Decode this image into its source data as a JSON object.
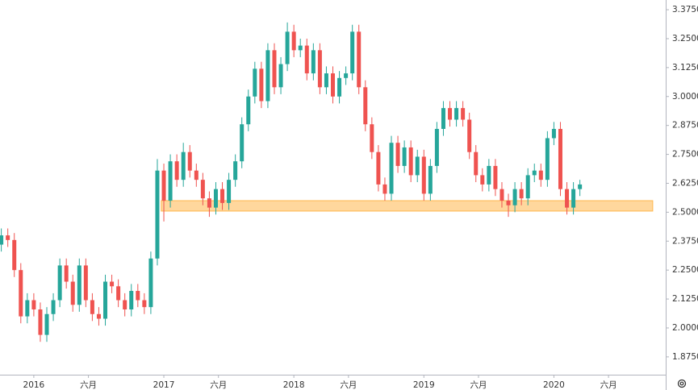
{
  "chart_data": {
    "type": "candlestick",
    "x": [
      2015.75,
      2015.8,
      2015.85,
      2015.9,
      2015.95,
      2016,
      2016.05,
      2016.1,
      2016.15,
      2016.2,
      2016.25,
      2016.3,
      2016.35,
      2016.4,
      2016.45,
      2016.5,
      2016.55,
      2016.6,
      2016.65,
      2016.7,
      2016.75,
      2016.8,
      2016.85,
      2016.9,
      2016.95,
      2017,
      2017.05,
      2017.1,
      2017.15,
      2017.2,
      2017.25,
      2017.3,
      2017.35,
      2017.4,
      2017.45,
      2017.5,
      2017.55,
      2017.6,
      2017.65,
      2017.7,
      2017.75,
      2017.8,
      2017.85,
      2017.9,
      2017.95,
      2018,
      2018.05,
      2018.1,
      2018.15,
      2018.2,
      2018.25,
      2018.3,
      2018.35,
      2018.4,
      2018.45,
      2018.5,
      2018.55,
      2018.6,
      2018.65,
      2018.7,
      2018.75,
      2018.8,
      2018.85,
      2018.9,
      2018.95,
      2019,
      2019.05,
      2019.1,
      2019.15,
      2019.2,
      2019.25,
      2019.3,
      2019.35,
      2019.4,
      2019.45,
      2019.5,
      2019.55,
      2019.6,
      2019.65,
      2019.7,
      2019.75,
      2019.8,
      2019.85,
      2019.9,
      2019.95,
      2020,
      2020.05,
      2020.1,
      2020.15,
      2020.2
    ],
    "open": [
      2.36,
      2.4,
      2.38,
      2.25,
      2.05,
      2.12,
      2.08,
      1.97,
      2.06,
      2.12,
      2.27,
      2.2,
      2.1,
      2.27,
      2.12,
      2.06,
      2.04,
      2.2,
      2.18,
      2.12,
      2.08,
      2.16,
      2.12,
      2.09,
      2.3,
      2.68,
      2.55,
      2.72,
      2.64,
      2.76,
      2.68,
      2.64,
      2.56,
      2.52,
      2.6,
      2.54,
      2.64,
      2.72,
      2.88,
      3.0,
      3.12,
      2.98,
      3.2,
      3.04,
      3.14,
      3.28,
      3.2,
      3.22,
      3.1,
      3.2,
      3.04,
      3.1,
      3.0,
      3.08,
      3.1,
      3.28,
      3.04,
      2.88,
      2.76,
      2.62,
      2.58,
      2.8,
      2.7,
      2.78,
      2.66,
      2.74,
      2.58,
      2.7,
      2.86,
      2.95,
      2.9,
      2.95,
      2.9,
      2.76,
      2.66,
      2.62,
      2.7,
      2.6,
      2.55,
      2.53,
      2.6,
      2.56,
      2.66,
      2.68,
      2.64,
      2.82,
      2.86,
      2.6,
      2.52,
      2.6
    ],
    "high": [
      2.43,
      2.43,
      2.41,
      2.28,
      2.15,
      2.15,
      2.11,
      2.09,
      2.15,
      2.3,
      2.3,
      2.23,
      2.3,
      2.3,
      2.15,
      2.09,
      2.23,
      2.23,
      2.21,
      2.15,
      2.19,
      2.19,
      2.15,
      2.33,
      2.73,
      2.71,
      2.75,
      2.75,
      2.8,
      2.79,
      2.71,
      2.67,
      2.59,
      2.63,
      2.63,
      2.67,
      2.75,
      2.91,
      3.03,
      3.15,
      3.15,
      3.23,
      3.23,
      3.17,
      3.32,
      3.31,
      3.25,
      3.25,
      3.23,
      3.23,
      3.13,
      3.13,
      3.11,
      3.13,
      3.31,
      3.31,
      3.07,
      2.91,
      2.79,
      2.65,
      2.83,
      2.83,
      2.81,
      2.81,
      2.77,
      2.77,
      2.73,
      2.89,
      2.98,
      2.98,
      2.98,
      2.98,
      2.93,
      2.79,
      2.69,
      2.73,
      2.73,
      2.63,
      2.58,
      2.63,
      2.63,
      2.69,
      2.71,
      2.71,
      2.85,
      2.89,
      2.89,
      2.63,
      2.63,
      2.64
    ],
    "low": [
      2.33,
      2.35,
      2.22,
      2.02,
      2.02,
      2.05,
      1.94,
      1.94,
      2.03,
      2.09,
      2.17,
      2.07,
      2.07,
      2.09,
      2.03,
      2.01,
      2.01,
      2.15,
      2.09,
      2.05,
      2.05,
      2.09,
      2.06,
      2.06,
      2.27,
      2.46,
      2.52,
      2.61,
      2.61,
      2.65,
      2.61,
      2.53,
      2.48,
      2.49,
      2.51,
      2.51,
      2.61,
      2.69,
      2.85,
      2.97,
      2.95,
      2.95,
      3.01,
      3.01,
      3.11,
      3.17,
      3.17,
      3.07,
      3.07,
      3.01,
      3.01,
      2.97,
      2.97,
      3.05,
      3.07,
      3.01,
      2.85,
      2.73,
      2.59,
      2.55,
      2.55,
      2.67,
      2.67,
      2.63,
      2.63,
      2.55,
      2.55,
      2.67,
      2.83,
      2.87,
      2.87,
      2.87,
      2.73,
      2.63,
      2.59,
      2.59,
      2.57,
      2.52,
      2.48,
      2.5,
      2.53,
      2.53,
      2.63,
      2.61,
      2.61,
      2.79,
      2.57,
      2.49,
      2.49,
      2.57
    ],
    "close": [
      2.4,
      2.38,
      2.25,
      2.05,
      2.12,
      2.08,
      1.97,
      2.06,
      2.12,
      2.27,
      2.2,
      2.1,
      2.27,
      2.12,
      2.06,
      2.04,
      2.2,
      2.18,
      2.12,
      2.08,
      2.16,
      2.12,
      2.09,
      2.3,
      2.68,
      2.55,
      2.72,
      2.64,
      2.76,
      2.68,
      2.64,
      2.56,
      2.52,
      2.6,
      2.54,
      2.64,
      2.72,
      2.88,
      3.0,
      3.12,
      2.98,
      3.2,
      3.04,
      3.14,
      3.28,
      3.2,
      3.22,
      3.1,
      3.2,
      3.04,
      3.1,
      3.0,
      3.08,
      3.1,
      3.28,
      3.04,
      2.88,
      2.76,
      2.62,
      2.58,
      2.8,
      2.7,
      2.78,
      2.66,
      2.74,
      2.58,
      2.7,
      2.86,
      2.95,
      2.9,
      2.95,
      2.9,
      2.76,
      2.66,
      2.62,
      2.7,
      2.6,
      2.55,
      2.53,
      2.6,
      2.56,
      2.66,
      2.68,
      2.64,
      2.82,
      2.86,
      2.6,
      2.52,
      2.6,
      2.62
    ],
    "up_color": "#26a69a",
    "down_color": "#ef5350",
    "zone": {
      "x": [
        2016.98,
        2020.76
      ],
      "y": [
        2.505,
        2.55
      ],
      "color": "#ffb74d"
    },
    "xlim": [
      2015.74,
      2020.86
    ],
    "ylim": [
      1.798,
      3.417
    ],
    "xticks": [
      2016,
      {
        "value": 2016.42,
        "label": "六月"
      },
      2017,
      {
        "value": 2017.42,
        "label": "六月"
      },
      2018,
      {
        "value": 2018.42,
        "label": "六月"
      },
      2019,
      {
        "value": 2019.42,
        "label": "六月"
      },
      2020,
      {
        "value": 2020.42,
        "label": "六月"
      }
    ],
    "yticks": [
      {
        "value": 3.375,
        "label": "3.3750"
      },
      {
        "value": 3.25,
        "label": "3.2500"
      },
      {
        "value": 3.125,
        "label": "3.1250"
      },
      {
        "value": 3.0,
        "label": "3.0000"
      },
      {
        "value": 2.875,
        "label": "2.8750"
      },
      {
        "value": 2.75,
        "label": "2.7500"
      },
      {
        "value": 2.625,
        "label": "2.6250"
      },
      {
        "value": 2.5,
        "label": "2.5000"
      },
      {
        "value": 2.375,
        "label": "2.3750"
      },
      {
        "value": 2.25,
        "label": "2.2500"
      },
      {
        "value": 2.125,
        "label": "2.1250"
      },
      {
        "value": 2.0,
        "label": "2.0000"
      },
      {
        "value": 1.875,
        "label": "1.8750"
      }
    ]
  }
}
